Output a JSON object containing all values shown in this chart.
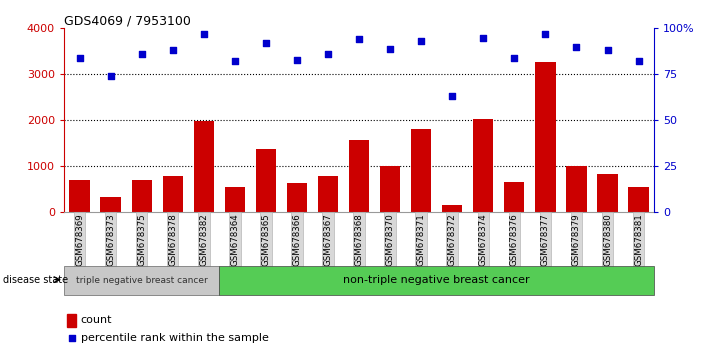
{
  "title": "GDS4069 / 7953100",
  "categories": [
    "GSM678369",
    "GSM678373",
    "GSM678375",
    "GSM678378",
    "GSM678382",
    "GSM678364",
    "GSM678365",
    "GSM678366",
    "GSM678367",
    "GSM678368",
    "GSM678370",
    "GSM678371",
    "GSM678372",
    "GSM678374",
    "GSM678376",
    "GSM678377",
    "GSM678379",
    "GSM678380",
    "GSM678381"
  ],
  "counts": [
    700,
    330,
    710,
    790,
    1980,
    560,
    1380,
    640,
    790,
    1580,
    1000,
    1820,
    160,
    2020,
    660,
    3270,
    1000,
    840,
    560
  ],
  "percentiles": [
    84,
    74,
    86,
    88,
    97,
    82,
    92,
    83,
    86,
    94,
    89,
    93,
    63,
    95,
    84,
    97,
    90,
    88,
    82
  ],
  "ylim_left": [
    0,
    4000
  ],
  "ylim_right": [
    0,
    100
  ],
  "yticks_left": [
    0,
    1000,
    2000,
    3000,
    4000
  ],
  "yticks_right": [
    0,
    25,
    50,
    75,
    100
  ],
  "ytick_labels_right": [
    "0",
    "25",
    "50",
    "75",
    "100%"
  ],
  "bar_color": "#cc0000",
  "dot_color": "#0000cc",
  "left_axis_color": "#cc0000",
  "right_axis_color": "#0000cc",
  "group1_label": "triple negative breast cancer",
  "group2_label": "non-triple negative breast cancer",
  "group1_count": 5,
  "group2_count": 14,
  "disease_state_label": "disease state",
  "legend_count_label": "count",
  "legend_percentile_label": "percentile rank within the sample",
  "group1_bg": "#c8c8c8",
  "group2_bg": "#55cc55",
  "xticklabel_bg": "#d0d0d0"
}
